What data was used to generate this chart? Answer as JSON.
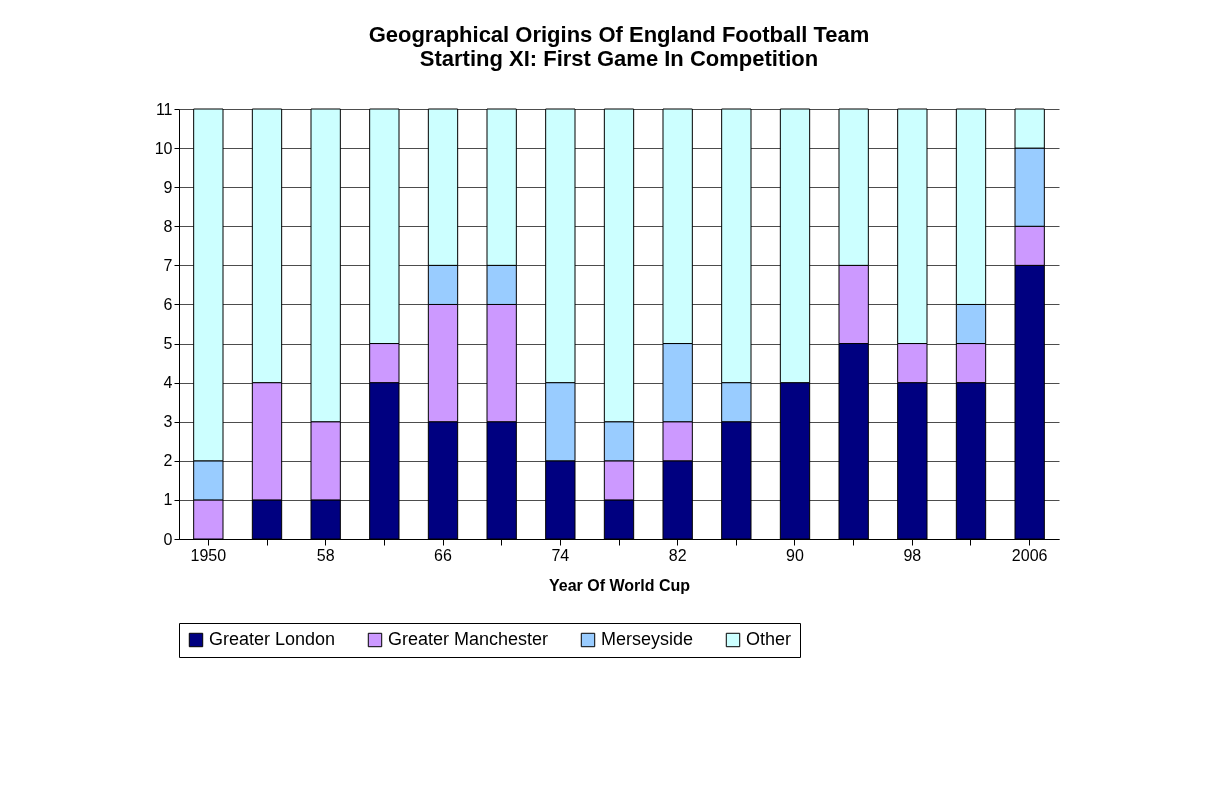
{
  "chart_data": {
    "type": "bar",
    "title": "Geographical Origins Of England Football Team\nStarting XI: First Game In Competition",
    "xlabel": "Year Of World Cup",
    "categories": [
      "1950",
      null,
      "58",
      null,
      "66",
      null,
      "74",
      null,
      "82",
      null,
      "90",
      null,
      "98",
      null,
      "2006"
    ],
    "stacked": true,
    "series": [
      {
        "name": "Greater London",
        "color": "#000080",
        "values": [
          0,
          1,
          1,
          4,
          3,
          3,
          2,
          1,
          2,
          3,
          4,
          5,
          4,
          4,
          7
        ]
      },
      {
        "name": "Greater Manchester",
        "color": "#cc99ff",
        "values": [
          1,
          3,
          2,
          1,
          3,
          3,
          0,
          1,
          1,
          0,
          0,
          2,
          1,
          1,
          1
        ]
      },
      {
        "name": "Merseyside",
        "color": "#99ccff",
        "values": [
          1,
          0,
          0,
          0,
          1,
          1,
          2,
          1,
          2,
          1,
          0,
          0,
          0,
          1,
          2
        ]
      },
      {
        "name": "Other",
        "color": "#ccffff",
        "values": [
          9,
          7,
          8,
          6,
          4,
          4,
          7,
          8,
          6,
          7,
          7,
          4,
          6,
          5,
          1
        ]
      }
    ],
    "ylim": [
      0,
      11
    ],
    "yticks": [
      0,
      1,
      2,
      3,
      4,
      5,
      6,
      7,
      8,
      9,
      10,
      11
    ],
    "grid": "y",
    "legend": "bottom"
  }
}
